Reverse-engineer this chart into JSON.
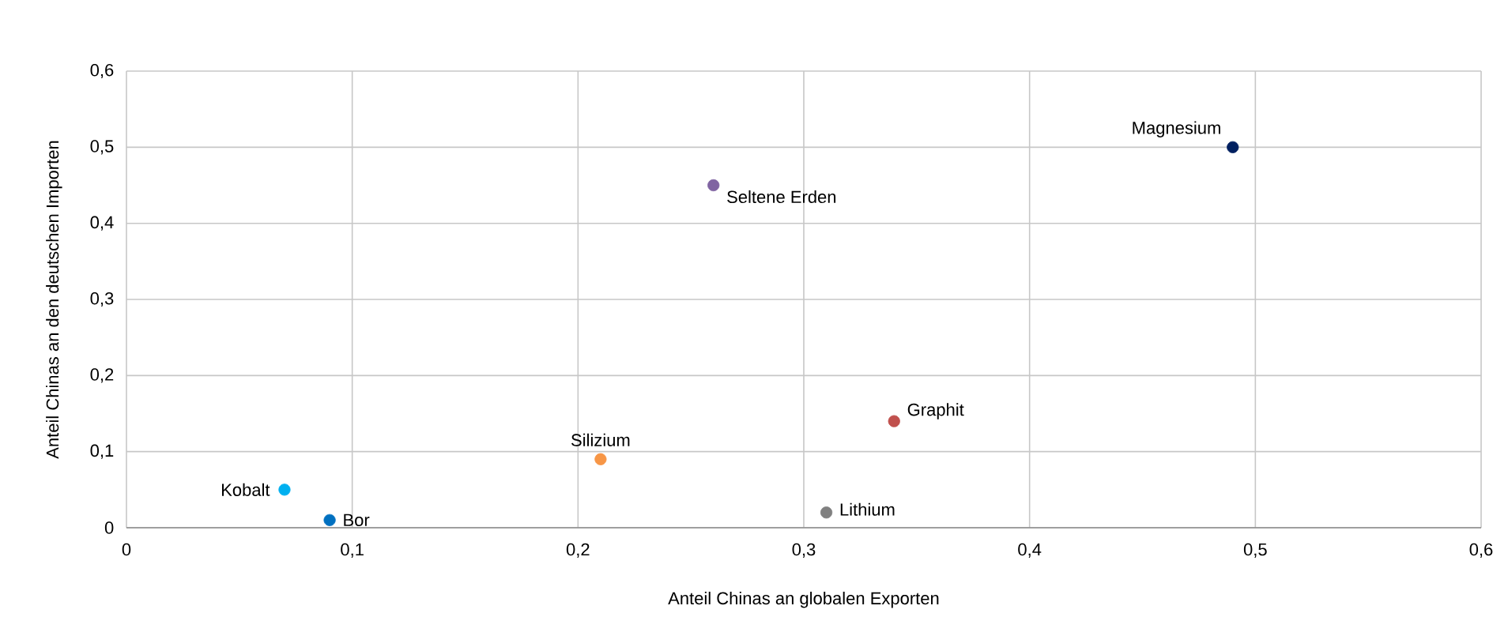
{
  "chart_data": {
    "type": "scatter",
    "xlabel": "Anteil Chinas an globalen Exporten",
    "ylabel": "Anteil Chinas an den deutschen Importen",
    "x": [
      0.07,
      0.09,
      0.21,
      0.26,
      0.31,
      0.34,
      0.49
    ],
    "values": [
      0.05,
      0.01,
      0.09,
      0.45,
      0.02,
      0.14,
      0.5
    ],
    "colors": [
      "#00b0f0",
      "#0070c0",
      "#f79646",
      "#8064a2",
      "#808080",
      "#c0504d",
      "#002060"
    ],
    "xlim": [
      0,
      0.6
    ],
    "ylim": [
      0,
      0.6
    ],
    "xticks": [
      {
        "value": 0,
        "label": "0"
      },
      {
        "value": 0.1,
        "label": "0,1"
      },
      {
        "value": 0.2,
        "label": "0,2"
      },
      {
        "value": 0.3,
        "label": "0,3"
      },
      {
        "value": 0.4,
        "label": "0,4"
      },
      {
        "value": 0.5,
        "label": "0,5"
      },
      {
        "value": 0.6,
        "label": "0,6"
      }
    ],
    "yticks": [
      {
        "value": 0,
        "label": "0"
      },
      {
        "value": 0.1,
        "label": "0,1"
      },
      {
        "value": 0.2,
        "label": "0,2"
      },
      {
        "value": 0.3,
        "label": "0,3"
      },
      {
        "value": 0.4,
        "label": "0,4"
      },
      {
        "value": 0.5,
        "label": "0,5"
      },
      {
        "value": 0.6,
        "label": "0,6"
      }
    ],
    "grid": true,
    "annotations": [
      {
        "text": "Kobalt",
        "x": 0.07,
        "y": 0.05
      },
      {
        "text": "Bor",
        "x": 0.09,
        "y": 0.01
      },
      {
        "text": "Silizium",
        "x": 0.21,
        "y": 0.09
      },
      {
        "text": "Seltene Erden",
        "x": 0.26,
        "y": 0.45
      },
      {
        "text": "Lithium",
        "x": 0.31,
        "y": 0.02
      },
      {
        "text": "Graphit",
        "x": 0.34,
        "y": 0.14
      },
      {
        "text": "Magnesium",
        "x": 0.49,
        "y": 0.5
      }
    ]
  }
}
